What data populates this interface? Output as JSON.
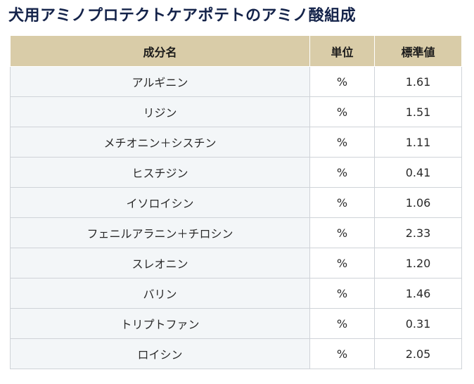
{
  "title": "犬用アミノプロテクトケアポテトのアミノ酸組成",
  "table": {
    "headers": [
      "成分名",
      "単位",
      "標準値"
    ],
    "rows": [
      {
        "name": "アルギニン",
        "unit": "%",
        "value": "1.61"
      },
      {
        "name": "リジン",
        "unit": "%",
        "value": "1.51"
      },
      {
        "name": "メチオニン＋シスチン",
        "unit": "%",
        "value": "1.11"
      },
      {
        "name": "ヒスチジン",
        "unit": "%",
        "value": "0.41"
      },
      {
        "name": "イソロイシン",
        "unit": "%",
        "value": "1.06"
      },
      {
        "name": "フェニルアラニン＋チロシン",
        "unit": "%",
        "value": "2.33"
      },
      {
        "name": "スレオニン",
        "unit": "%",
        "value": "1.20"
      },
      {
        "name": "バリン",
        "unit": "%",
        "value": "1.46"
      },
      {
        "name": "トリプトファン",
        "unit": "%",
        "value": "0.31"
      },
      {
        "name": "ロイシン",
        "unit": "%",
        "value": "2.05"
      }
    ]
  },
  "colors": {
    "title": "#14234a",
    "header_bg": "#d9cca8",
    "name_cell_bg": "#f3f6f8",
    "border": "#cfd3d8"
  }
}
